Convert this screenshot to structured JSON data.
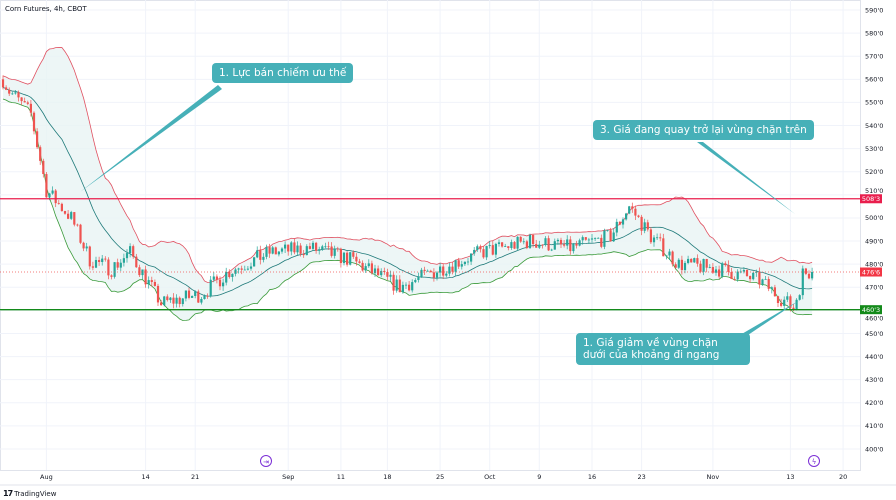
{
  "header": {
    "symbol_title": "Corn Futures, 4h, CBOT"
  },
  "footer": {
    "brand": "TradingView",
    "brand_mark": "17"
  },
  "colors": {
    "up": "#26a69a",
    "down": "#ef5350",
    "resistance": "#e91e4d",
    "support": "#138a1a",
    "band_upper": "#e05060",
    "band_lower": "#3a9a3a",
    "band_mid": "#1f7a7a",
    "band_fill": "#e8f4f4",
    "callout": "#46b0b8",
    "event_icon": "#7b2fd6"
  },
  "annotations": [
    {
      "text": "1. Lực bán chiếm ưu thế"
    },
    {
      "text": "3. Giá đang quay trở lại vùng chặn trên"
    },
    {
      "text": "1. Giá giảm về vùng chặn dưới của khoảng đi ngang"
    }
  ],
  "chart_data": {
    "type": "candlestick",
    "title": "Corn Futures, 4h, CBOT",
    "y_ticks": [
      "590'0",
      "580'0",
      "570'0",
      "560'0",
      "550'0",
      "540'0",
      "530'0",
      "520'0",
      "510'0",
      "500'0",
      "490'0",
      "480'0",
      "470'0",
      "460'0",
      "450'0",
      "440'0",
      "430'0",
      "420'0",
      "410'0",
      "400'0"
    ],
    "y_tick_values": [
      590,
      580,
      570,
      560,
      550,
      540,
      530,
      520,
      510,
      500,
      490,
      480,
      470,
      460,
      450,
      440,
      430,
      420,
      410,
      400
    ],
    "ylim": [
      400,
      590
    ],
    "x_ticks": [
      "Aug",
      "14",
      "21",
      "Sep",
      "11",
      "18",
      "25",
      "Oct",
      "9",
      "16",
      "23",
      "Nov",
      "13",
      "20"
    ],
    "x_tick_bars": [
      14,
      46,
      62,
      92,
      109,
      124,
      141,
      157,
      173,
      190,
      206,
      229,
      254,
      271
    ],
    "bar_count": 262,
    "price_path": [
      [
        0,
        560
      ],
      [
        2,
        555
      ],
      [
        9,
        545
      ],
      [
        14,
        512
      ],
      [
        22,
        500
      ],
      [
        28,
        482
      ],
      [
        35,
        478
      ],
      [
        41,
        485
      ],
      [
        51,
        463
      ],
      [
        64,
        467
      ],
      [
        73,
        477
      ],
      [
        86,
        485
      ],
      [
        99,
        487
      ],
      [
        112,
        482
      ],
      [
        128,
        470
      ],
      [
        141,
        478
      ],
      [
        154,
        485
      ],
      [
        170,
        490
      ],
      [
        183,
        487
      ],
      [
        196,
        492
      ],
      [
        202,
        505
      ],
      [
        209,
        492
      ],
      [
        218,
        480
      ],
      [
        231,
        478
      ],
      [
        244,
        473
      ],
      [
        255,
        461
      ],
      [
        257,
        470
      ],
      [
        258,
        476
      ],
      [
        261,
        476.6
      ]
    ],
    "indicators": {
      "bollinger": {
        "period": 20,
        "stddev": 2
      }
    },
    "horizontal_lines": [
      {
        "name": "resistance",
        "value": 508.3,
        "label": "508'3"
      },
      {
        "name": "support",
        "value": 460.3,
        "label": "460'3"
      }
    ],
    "last_price": {
      "value": 476.6,
      "label": "476'6"
    },
    "events": [
      {
        "type": "split",
        "bar": 85
      },
      {
        "type": "earnings",
        "bar": 262
      }
    ]
  }
}
